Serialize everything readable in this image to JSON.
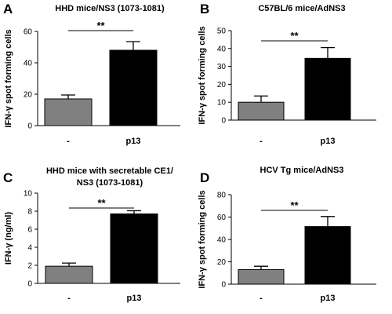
{
  "chart_data": [
    {
      "type": "bar",
      "panel": "A",
      "title": "HHD mice/NS3 (1073-1081)",
      "ylabel": "IFN-γ spot forming cells",
      "categories": [
        "-",
        "p13"
      ],
      "values": [
        17,
        48
      ],
      "errors": [
        2.5,
        5.5
      ],
      "ylim": [
        0,
        60
      ],
      "yticks": [
        "0",
        "20",
        "40",
        "60"
      ],
      "bar_colors": [
        "#808080",
        "#000000"
      ],
      "significance": "**",
      "grid": false
    },
    {
      "type": "bar",
      "panel": "B",
      "title": "C57BL/6 mice/AdNS3",
      "ylabel": "IFN-γ spot forming cells",
      "categories": [
        "-",
        "p13"
      ],
      "values": [
        10,
        34.5
      ],
      "errors": [
        3.5,
        6
      ],
      "ylim": [
        0,
        50
      ],
      "yticks": [
        "0",
        "10",
        "20",
        "30",
        "40",
        "50"
      ],
      "bar_colors": [
        "#808080",
        "#000000"
      ],
      "significance": "**",
      "grid": false
    },
    {
      "type": "bar",
      "panel": "C",
      "title": "HHD mice with secretable CE1/ NS3 (1073-1081)",
      "title_lines": [
        "HHD mice with secretable CE1/",
        "NS3 (1073-1081)"
      ],
      "ylabel": "IFN-γ (ng/ml)",
      "categories": [
        "-",
        "p13"
      ],
      "values": [
        1.9,
        7.7
      ],
      "errors": [
        0.35,
        0.35
      ],
      "ylim": [
        0,
        10
      ],
      "yticks": [
        "0",
        "2",
        "4",
        "6",
        "8",
        "10"
      ],
      "bar_colors": [
        "#808080",
        "#000000"
      ],
      "significance": "**",
      "grid": false
    },
    {
      "type": "bar",
      "panel": "D",
      "title": "HCV Tg mice/AdNS3",
      "ylabel": "IFN-γ spot forming cells",
      "categories": [
        "-",
        "p13"
      ],
      "values": [
        13,
        51.5
      ],
      "errors": [
        3,
        9
      ],
      "ylim": [
        0,
        80
      ],
      "yticks": [
        "0",
        "20",
        "40",
        "60",
        "80"
      ],
      "bar_colors": [
        "#808080",
        "#000000"
      ],
      "significance": "**",
      "grid": false
    }
  ]
}
